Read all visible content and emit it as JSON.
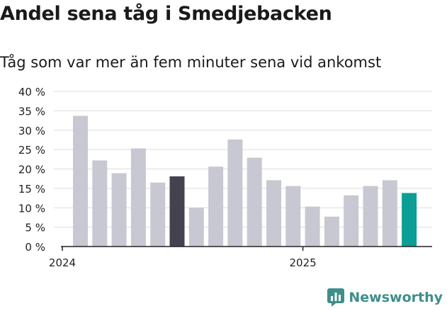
{
  "title": "Andel sena tåg i Smedjebacken",
  "subtitle": "Tåg som var mer än fem minuter sena vid ankomst",
  "brand": "Newsworthy",
  "colors": {
    "bar_default": "#c8c8d2",
    "bar_highlight_dark": "#43424e",
    "bar_highlight_teal": "#0a9e96",
    "grid": "#dddddd",
    "axis": "#222222",
    "brand": "#3e8f8a"
  },
  "chart_data": {
    "type": "bar",
    "title": "Andel sena tåg i Smedjebacken",
    "subtitle": "Tåg som var mer än fem minuter sena vid ankomst",
    "xlabel": "",
    "ylabel": "",
    "ylim": [
      0,
      40
    ],
    "yticks": [
      "0 %",
      "5 %",
      "10 %",
      "15 %",
      "20 %",
      "25 %",
      "30 %",
      "35 %",
      "40 %"
    ],
    "ytick_values": [
      0,
      5,
      10,
      15,
      20,
      25,
      30,
      35,
      40
    ],
    "x_tick_labels": [
      {
        "label": "2024",
        "at_index": 0
      },
      {
        "label": "2025",
        "at_index": 12
      }
    ],
    "categories": [
      "2024-01",
      "2024-02",
      "2024-03",
      "2024-04",
      "2024-05",
      "2024-06",
      "2024-07",
      "2024-08",
      "2024-09",
      "2024-10",
      "2024-11",
      "2024-12",
      "2025-01",
      "2025-02",
      "2025-03",
      "2025-04",
      "2025-05",
      "2025-06"
    ],
    "values": [
      33.7,
      22.2,
      18.9,
      25.3,
      16.5,
      18.1,
      10.0,
      20.6,
      27.6,
      22.9,
      17.1,
      15.6,
      10.3,
      7.7,
      13.2,
      15.6,
      17.1,
      13.8
    ],
    "highlight": {
      "5": "dark",
      "17": "teal"
    },
    "grid": true,
    "legend": "none"
  }
}
